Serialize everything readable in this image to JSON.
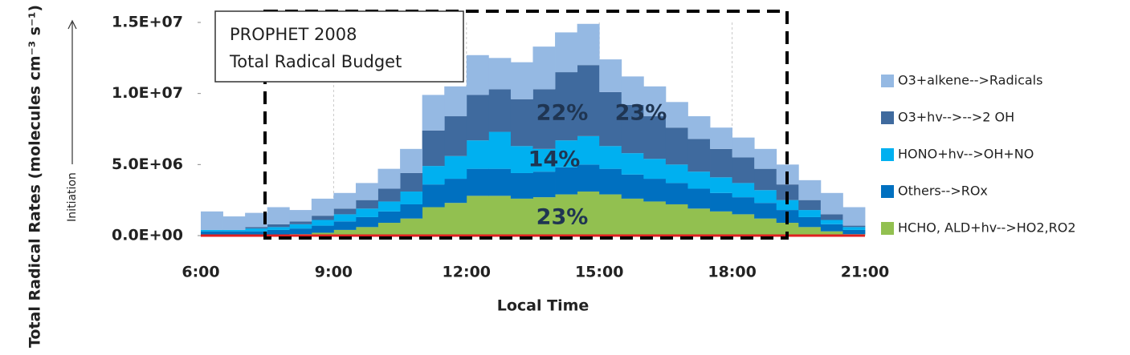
{
  "chart_data": {
    "type": "stacked-step-area",
    "title": "PROPHET 2008",
    "subtitle": "Total Radical Budget",
    "x_label": "Local Time",
    "y_label": "Total Radical Rates (molecules cm⁻³ s⁻¹)",
    "y_side_label": "Initiation",
    "annotations": [
      "22%",
      "23%",
      "14%",
      "23%"
    ],
    "x": [
      6,
      6.5,
      7,
      7.5,
      8,
      8.5,
      9,
      9.5,
      10,
      10.5,
      11,
      11.5,
      12,
      12.5,
      13,
      13.5,
      14,
      14.5,
      15,
      15.5,
      16,
      16.5,
      17,
      17.5,
      18,
      18.5,
      19,
      19.5,
      20,
      20.5
    ],
    "series": [
      {
        "name": "HCHO, ALD+hv-->HO2,RO2",
        "color": "#92c050",
        "values": [
          0,
          0,
          0,
          0,
          100000.0,
          200000.0,
          400000.0,
          600000.0,
          900000.0,
          1200000.0,
          2000000.0,
          2300000.0,
          2800000.0,
          2800000.0,
          2600000.0,
          2700000.0,
          2900000.0,
          3100000.0,
          2900000.0,
          2600000.0,
          2400000.0,
          2200000.0,
          1900000.0,
          1700000.0,
          1500000.0,
          1200000.0,
          900000.0,
          600000.0,
          300000.0,
          100000.0
        ]
      },
      {
        "name": "Others-->ROx",
        "color": "#0070c0",
        "values": [
          300000.0,
          300000.0,
          300000.0,
          400000.0,
          400000.0,
          500000.0,
          600000.0,
          700000.0,
          800000.0,
          1000000.0,
          1600000.0,
          1700000.0,
          1900000.0,
          1900000.0,
          1800000.0,
          1800000.0,
          1900000.0,
          1900000.0,
          1800000.0,
          1700000.0,
          1600000.0,
          1500000.0,
          1400000.0,
          1300000.0,
          1200000.0,
          1100000.0,
          900000.0,
          700000.0,
          500000.0,
          300000.0
        ]
      },
      {
        "name": "HONO+hv-->OH+NO",
        "color": "#00b0f0",
        "values": [
          100000.0,
          100000.0,
          200000.0,
          200000.0,
          300000.0,
          400000.0,
          500000.0,
          600000.0,
          700000.0,
          900000.0,
          1300000.0,
          1600000.0,
          2000000.0,
          2600000.0,
          1900000.0,
          1600000.0,
          1900000.0,
          2000000.0,
          1600000.0,
          1500000.0,
          1400000.0,
          1300000.0,
          1200000.0,
          1100000.0,
          1000000.0,
          900000.0,
          700000.0,
          500000.0,
          300000.0,
          200000.0
        ]
      },
      {
        "name": "O3+hv-->-->2 OH",
        "color": "#3f6a9e",
        "values": [
          0,
          0,
          100000.0,
          200000.0,
          200000.0,
          300000.0,
          400000.0,
          600000.0,
          900000.0,
          1300000.0,
          2500000.0,
          2800000.0,
          3200000.0,
          3000000.0,
          3300000.0,
          4200000.0,
          4800000.0,
          5000000.0,
          3800000.0,
          3400000.0,
          3000000.0,
          2600000.0,
          2300000.0,
          2000000.0,
          1800000.0,
          1500000.0,
          1100000.0,
          700000.0,
          400000.0,
          100000.0
        ]
      },
      {
        "name": "O3+alkene-->Radicals",
        "color": "#95b9e3",
        "values": [
          1300000.0,
          950000.0,
          1000000.0,
          1200000.0,
          800000.0,
          1200000.0,
          1100000.0,
          1200000.0,
          1400000.0,
          1700000.0,
          2500000.0,
          2100000.0,
          2800000.0,
          2200000.0,
          2600000.0,
          3000000.0,
          2800000.0,
          2900000.0,
          2300000.0,
          2000000.0,
          2100000.0,
          1800000.0,
          1600000.0,
          1500000.0,
          1400000.0,
          1400000.0,
          1400000.0,
          1400000.0,
          1500000.0,
          1300000.0
        ]
      }
    ],
    "bin_width": 0.5,
    "xlim": [
      6,
      21
    ],
    "xticks": [
      {
        "value": 6,
        "label": "6:00"
      },
      {
        "value": 9,
        "label": "9:00"
      },
      {
        "value": 12,
        "label": "12:00"
      },
      {
        "value": 15,
        "label": "15:00"
      },
      {
        "value": 18,
        "label": "18:00"
      },
      {
        "value": 21,
        "label": "21:00"
      }
    ],
    "ylim": [
      0,
      15000000.0
    ],
    "yticks": [
      {
        "value": 0,
        "label": "0.0E+00"
      },
      {
        "value": 5000000.0,
        "label": "5.0E+06"
      },
      {
        "value": 10000000.0,
        "label": "1.0E+07"
      },
      {
        "value": 15000000.0,
        "label": "1.5E+07"
      }
    ],
    "xgrid": true,
    "legend": "right"
  }
}
